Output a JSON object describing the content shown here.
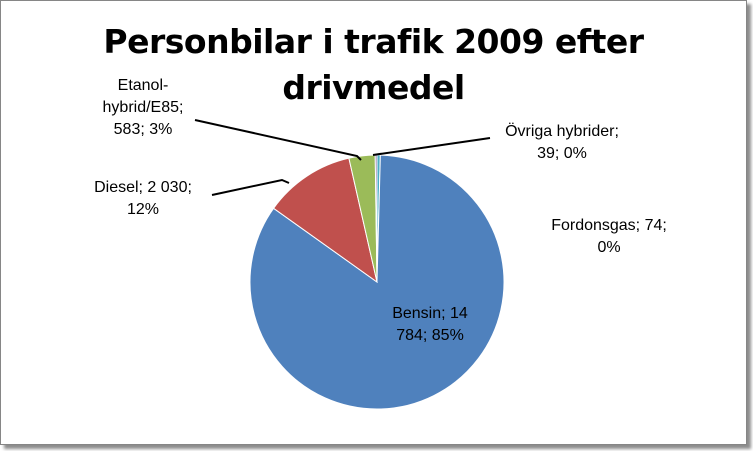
{
  "chart_data": {
    "type": "pie",
    "title_lines": [
      "Personbilar i trafik 2009 efter",
      "drivmedel"
    ],
    "slices": [
      {
        "name": "Bensin",
        "value": 14784,
        "percent": "85%",
        "label_lines": [
          "Bensin; 14",
          "784; 85%"
        ],
        "color": "#4f81bd"
      },
      {
        "name": "Diesel",
        "value": 2030,
        "percent": "12%",
        "label_lines": [
          "Diesel; 2 030;",
          "12%"
        ],
        "color": "#c0504d"
      },
      {
        "name": "Etanol-hybrid/E85",
        "value": 583,
        "percent": "3%",
        "label_lines": [
          "Etanol-",
          "hybrid/E85;",
          "583; 3%"
        ],
        "color": "#9bbb59"
      },
      {
        "name": "Övriga hybrider",
        "value": 39,
        "percent": "0%",
        "label_lines": [
          "Övriga hybrider;",
          "39; 0%"
        ],
        "color": "#8064a2"
      },
      {
        "name": "Fordonsgas",
        "value": 74,
        "percent": "0%",
        "label_lines": [
          "Fordonsgas; 74;",
          "0%"
        ],
        "color": "#4bacc6"
      }
    ],
    "legend": "none"
  }
}
